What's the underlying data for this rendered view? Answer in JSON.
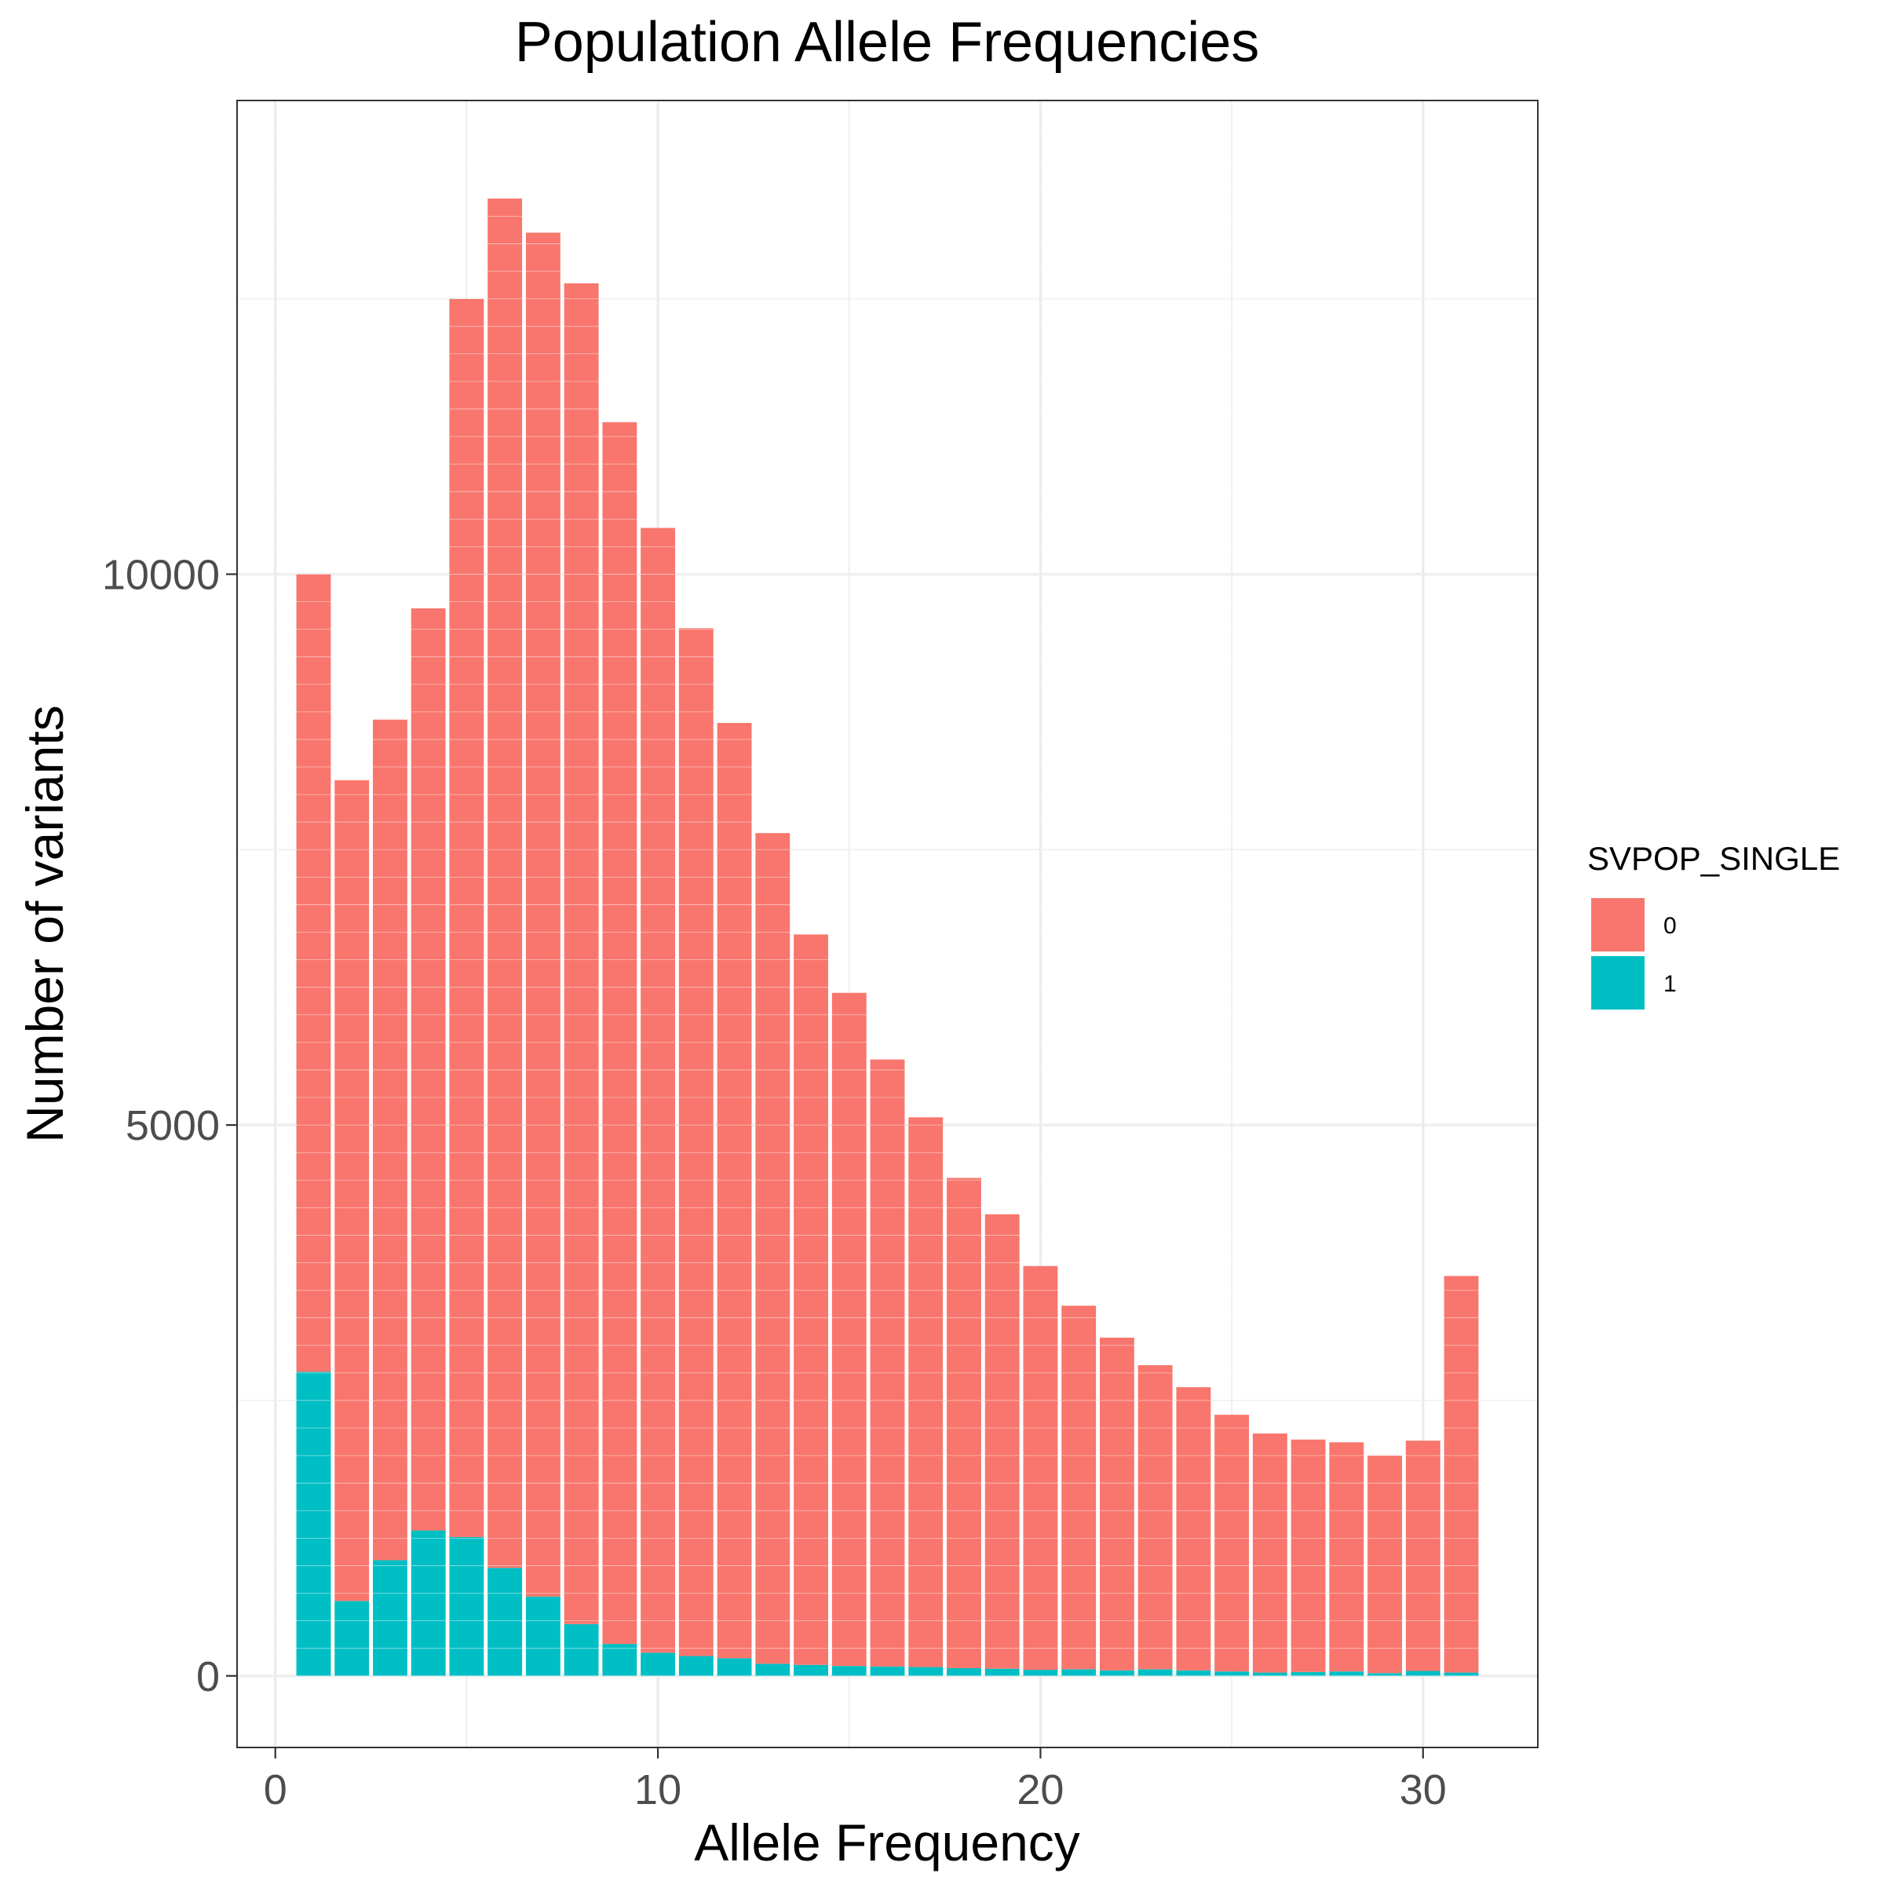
{
  "chart_data": {
    "type": "bar",
    "stacked": true,
    "title": "Population Allele Frequencies",
    "xlabel": "Allele Frequency",
    "ylabel": "Number of variants",
    "xlim": [
      -1.0,
      33.0
    ],
    "ylim": [
      -650,
      14300
    ],
    "x_ticks": [
      0,
      10,
      20,
      30
    ],
    "y_ticks": [
      0,
      5000,
      10000
    ],
    "bar_width": 0.9,
    "grid": true,
    "legend": {
      "title": "SVPOP_SINGLE",
      "position": "right",
      "entries": [
        {
          "label": "0",
          "color": "#F8766D"
        },
        {
          "label": "1",
          "color": "#00BFC4"
        }
      ]
    },
    "x": [
      1,
      2,
      3,
      4,
      5,
      6,
      7,
      8,
      9,
      10,
      11,
      12,
      13,
      14,
      15,
      16,
      17,
      18,
      19,
      20,
      21,
      22,
      23,
      24,
      25,
      26,
      27,
      28,
      29,
      30,
      31
    ],
    "series": [
      {
        "name": "1",
        "color": "#00BFC4",
        "values": [
          2760,
          680,
          1050,
          1320,
          1260,
          980,
          720,
          470,
          290,
          210,
          180,
          160,
          110,
          100,
          90,
          85,
          80,
          70,
          65,
          55,
          60,
          50,
          60,
          50,
          40,
          30,
          35,
          40,
          25,
          45,
          30
        ]
      },
      {
        "name": "0",
        "color": "#F8766D",
        "values": [
          7240,
          7450,
          7630,
          8370,
          11240,
          12430,
          12380,
          12170,
          11090,
          10210,
          9330,
          8490,
          7540,
          6630,
          6110,
          5510,
          4990,
          4450,
          4125,
          3665,
          3300,
          3020,
          2760,
          2570,
          2330,
          2170,
          2110,
          2080,
          1975,
          2090,
          3600
        ]
      }
    ]
  }
}
